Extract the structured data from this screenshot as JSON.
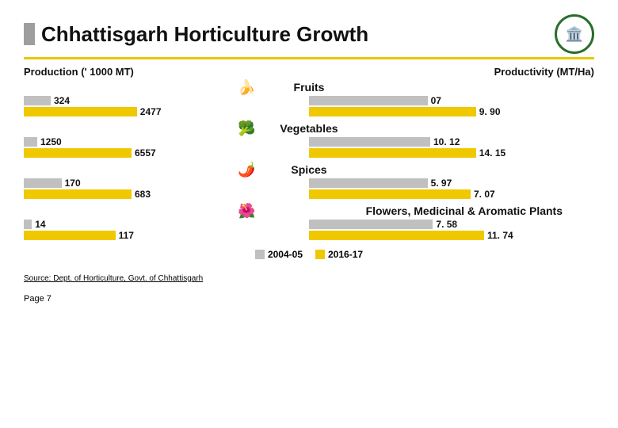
{
  "title": "Chhattisgarh Horticulture Growth",
  "left_axis": "Production (' 1000 MT)",
  "right_axis": "Productivity  (MT/Ha)",
  "legend": {
    "a": "2004-05",
    "b": "2016-17"
  },
  "colors": {
    "grey": "#c0c0c0",
    "yellow": "#f0c800",
    "underline": "#e8c800"
  },
  "left_max": 7000,
  "right_max": 16,
  "categories": [
    {
      "name": "Fruits",
      "icon": "🍌",
      "prod_a": "324",
      "prod_a_pct": 10,
      "prod_b": "2477",
      "prod_b_pct": 42,
      "pty_a": "07",
      "pty_a_pct": 44,
      "pty_b": "9. 90",
      "pty_b_pct": 62
    },
    {
      "name": "Vegetables",
      "icon": "🥦",
      "prod_a": "1250",
      "prod_a_pct": 5,
      "prod_b": "6557",
      "prod_b_pct": 40,
      "pty_a": "10. 12",
      "pty_a_pct": 45,
      "pty_b": "14. 15",
      "pty_b_pct": 62
    },
    {
      "name": "Spices",
      "icon": "🌶️",
      "prod_a": "170",
      "prod_a_pct": 14,
      "prod_b": "683",
      "prod_b_pct": 40,
      "pty_a": "5. 97",
      "pty_a_pct": 44,
      "pty_b": "7. 07",
      "pty_b_pct": 60
    },
    {
      "name": "Flowers, Medicinal & Aromatic Plants",
      "icon": "🌺",
      "long": true,
      "prod_a": "14",
      "prod_a_pct": 3,
      "prod_b": "117",
      "prod_b_pct": 34,
      "pty_a": "7. 58",
      "pty_a_pct": 46,
      "pty_b": "11. 74",
      "pty_b_pct": 65
    }
  ],
  "source": "Source: Dept. of Horticulture, Govt. of Chhattisgarh",
  "page": "Page 7"
}
